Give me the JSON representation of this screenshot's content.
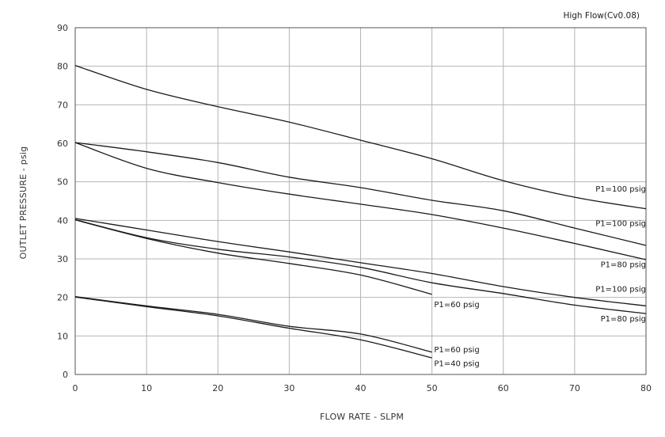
{
  "chart_data": {
    "type": "line",
    "title": "",
    "note": "High Flow(Cv0.08)",
    "xlabel": "FLOW RATE - SLPM",
    "ylabel": "OUTLET PRESSURE - psig",
    "xlim": [
      0,
      80
    ],
    "ylim": [
      0,
      90
    ],
    "xticks": [
      "0",
      "10",
      "20",
      "30",
      "40",
      "50",
      "60",
      "70",
      "80"
    ],
    "yticks": [
      "0",
      "10",
      "20",
      "30",
      "40",
      "50",
      "60",
      "70",
      "80",
      "90"
    ],
    "grid": true,
    "series": [
      {
        "name": "P1=100 psig",
        "x": [
          0,
          10,
          20,
          30,
          40,
          50,
          60,
          70,
          80
        ],
        "y": [
          80.2,
          74,
          69.5,
          65.5,
          60.8,
          56,
          50.3,
          46,
          43
        ]
      },
      {
        "name": "P1=100 psig",
        "x": [
          0,
          10,
          20,
          30,
          40,
          50,
          60,
          70,
          80
        ],
        "y": [
          60.2,
          57.8,
          55,
          51.2,
          48.5,
          45.2,
          42.5,
          38,
          33.5
        ]
      },
      {
        "name": "P1=80 psig",
        "x": [
          0,
          10,
          20,
          30,
          40,
          50,
          60,
          70,
          80
        ],
        "y": [
          60.2,
          53.5,
          49.8,
          46.8,
          44.2,
          41.5,
          38,
          34,
          29.8
        ]
      },
      {
        "name": "P1=100 psig",
        "x": [
          0,
          10,
          20,
          30,
          40,
          50,
          60,
          70,
          80
        ],
        "y": [
          40.5,
          37.5,
          34.5,
          31.8,
          29,
          26.2,
          22.8,
          20,
          17.8
        ]
      },
      {
        "name": "P1=80 psig",
        "x": [
          0,
          10,
          20,
          30,
          40,
          50,
          60,
          70,
          80
        ],
        "y": [
          40.2,
          35.5,
          32.5,
          30.5,
          27.8,
          23.8,
          21,
          18,
          15.8
        ]
      },
      {
        "name": "P1=60 psig",
        "x": [
          0,
          10,
          20,
          30,
          40,
          50
        ],
        "y": [
          40.1,
          35.3,
          31.5,
          28.8,
          25.8,
          20.8
        ]
      },
      {
        "name": "P1=60 psig",
        "x": [
          0,
          10,
          20,
          30,
          40,
          50
        ],
        "y": [
          20.2,
          17.8,
          15.6,
          12.5,
          10.5,
          5.8
        ]
      },
      {
        "name": "P1=40 psig",
        "x": [
          0,
          10,
          20,
          30,
          40,
          50
        ],
        "y": [
          20.1,
          17.6,
          15.2,
          12,
          9,
          4.3
        ]
      }
    ],
    "series_labels": [
      {
        "text": "P1=100 psig",
        "at_x": 80,
        "at_y": 47.5,
        "anchor": "end"
      },
      {
        "text": "P1=100 psig",
        "at_x": 80,
        "at_y": 38.5,
        "anchor": "end"
      },
      {
        "text": "P1=80 psig",
        "at_x": 80,
        "at_y": 27.8,
        "anchor": "end"
      },
      {
        "text": "P1=100 psig",
        "at_x": 80,
        "at_y": 21.5,
        "anchor": "end"
      },
      {
        "text": "P1=80 psig",
        "at_x": 80,
        "at_y": 13.8,
        "anchor": "end"
      },
      {
        "text": "P1=60 psig",
        "at_x": 50.3,
        "at_y": 17.5,
        "anchor": "start"
      },
      {
        "text": "P1=60 psig",
        "at_x": 50.3,
        "at_y": 5.8,
        "anchor": "start"
      },
      {
        "text": "P1=40 psig",
        "at_x": 50.3,
        "at_y": 2.2,
        "anchor": "start"
      }
    ]
  }
}
